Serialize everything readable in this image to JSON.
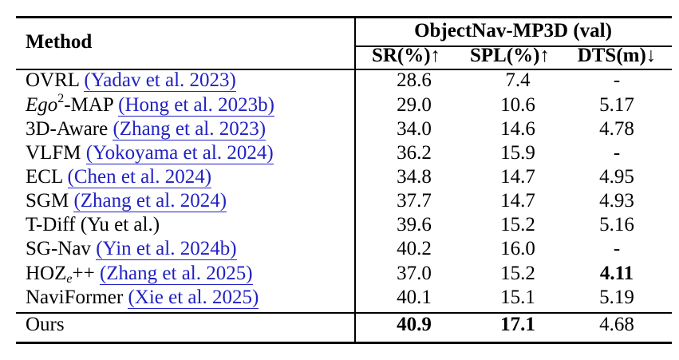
{
  "header": {
    "method": "Method",
    "group": "ObjectNav-MP3D (val)",
    "cols": [
      "SR(%)↑",
      "SPL(%)↑",
      "DTS(m)↓"
    ]
  },
  "rows": [
    {
      "name": "OVRL",
      "cite": "(Yadav et al. 2023)",
      "sr": "28.6",
      "spl": "7.4",
      "dts": "-"
    },
    {
      "name_a": "Ego",
      "name_sup": "2",
      "name_b": "-MAP",
      "cite": "(Hong et al. 2023b)",
      "sr": "29.0",
      "spl": "10.6",
      "dts": "5.17"
    },
    {
      "name": "3D-Aware",
      "cite": "(Zhang et al. 2023)",
      "sr": "34.0",
      "spl": "14.6",
      "dts": "4.78"
    },
    {
      "name": "VLFM",
      "cite": "(Yokoyama et al. 2024)",
      "sr": "36.2",
      "spl": "15.9",
      "dts": "-"
    },
    {
      "name": "ECL",
      "cite": "(Chen et al. 2024)",
      "sr": "34.8",
      "spl": "14.7",
      "dts": "4.95"
    },
    {
      "name": "SGM",
      "cite": "(Zhang et al. 2024)",
      "sr": "37.7",
      "spl": "14.7",
      "dts": "4.93"
    },
    {
      "name": "T-Diff",
      "cite": "(Yu et al.)",
      "sr": "39.6",
      "spl": "15.2",
      "dts": "5.16"
    },
    {
      "name": "SG-Nav",
      "cite": "(Yin et al. 2024b)",
      "sr": "40.2",
      "spl": "16.0",
      "dts": "-"
    },
    {
      "name_a": "HOZ",
      "name_sub": "e",
      "name_b": "++",
      "cite": "(Zhang et al. 2025)",
      "sr": "37.0",
      "spl": "15.2",
      "dts": "4.11"
    },
    {
      "name": "NaviFormer",
      "cite": "(Xie et al. 2025)",
      "sr": "40.1",
      "spl": "15.1",
      "dts": "5.19"
    }
  ],
  "ours": {
    "name": "Ours",
    "sr": "40.9",
    "spl": "17.1",
    "dts": "4.68"
  }
}
